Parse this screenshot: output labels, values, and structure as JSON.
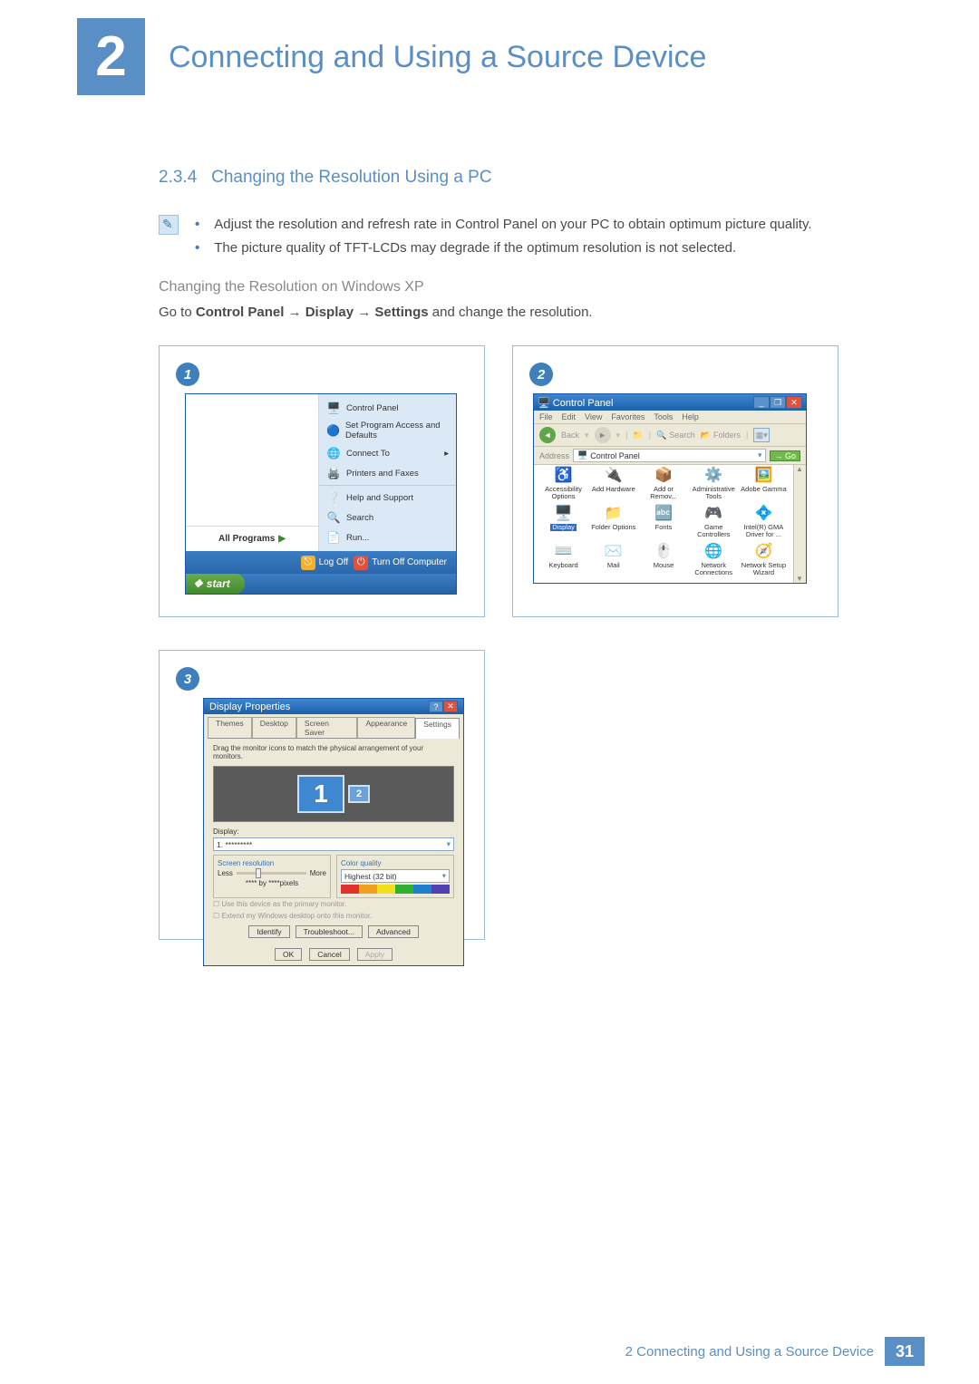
{
  "colors": {
    "accent": "#5a8fc6",
    "xp_blue_grad_top": "#3f86d0",
    "xp_blue_grad_bot": "#1c5fab",
    "xp_green_grad_top": "#6aaa4a",
    "xp_green_grad_bot": "#3f8a2d",
    "menu_bg": "#dbe8f6",
    "chrome_bg": "#ece9d8",
    "close_red": "#e0523e",
    "sel_blue": "#316ac5"
  },
  "header": {
    "chapter_number": "2",
    "chapter_title": "Connecting and Using a Source Device"
  },
  "section": {
    "number": "2.3.4",
    "title": "Changing the Resolution Using a PC"
  },
  "notes": {
    "bullet1": "Adjust the resolution and refresh rate in Control Panel on your PC to obtain optimum picture quality.",
    "bullet2": "The picture quality of TFT-LCDs may degrade if the optimum resolution is not selected."
  },
  "subheading": "Changing the Resolution on Windows XP",
  "instruction": {
    "prefix": "Go to ",
    "p1": "Control Panel",
    "arrow": " → ",
    "p2": "Display",
    "p3": "Settings",
    "suffix": " and change the resolution."
  },
  "shot1": {
    "num": "1",
    "right_items": [
      {
        "icon": "🖥️",
        "label": "Control Panel"
      },
      {
        "icon": "🔵",
        "label": "Set Program Access and Defaults"
      },
      {
        "icon": "🌐",
        "label": "Connect To"
      },
      {
        "icon": "🖨️",
        "label": "Printers and Faxes"
      },
      {
        "icon": "❔",
        "label": "Help and Support",
        "sep_before": true
      },
      {
        "icon": "🔍",
        "label": "Search"
      },
      {
        "icon": "📄",
        "label": "Run..."
      }
    ],
    "all_programs": "All Programs",
    "logoff": "Log Off",
    "turnoff": "Turn Off Computer",
    "start": "start"
  },
  "shot2": {
    "num": "2",
    "title": "Control Panel",
    "menus": [
      "File",
      "Edit",
      "View",
      "Favorites",
      "Tools",
      "Help"
    ],
    "toolbar": {
      "back": "Back",
      "search": "Search",
      "folders": "Folders"
    },
    "address_label": "Address",
    "address_value": "Control Panel",
    "go": "Go",
    "items": [
      {
        "icon": "♿",
        "label": "Accessibility Options"
      },
      {
        "icon": "🔌",
        "label": "Add Hardware"
      },
      {
        "icon": "📦",
        "label": "Add or Remov..."
      },
      {
        "icon": "⚙️",
        "label": "Administrative Tools"
      },
      {
        "icon": "🖼️",
        "label": "Adobe Gamma"
      },
      {
        "icon": "🖥️",
        "label": "Display",
        "selected": true
      },
      {
        "icon": "📁",
        "label": "Folder Options"
      },
      {
        "icon": "🔤",
        "label": "Fonts"
      },
      {
        "icon": "🎮",
        "label": "Game Controllers"
      },
      {
        "icon": "💠",
        "label": "Intel(R) GMA Driver for ..."
      },
      {
        "icon": "⌨️",
        "label": "Keyboard"
      },
      {
        "icon": "✉️",
        "label": "Mail"
      },
      {
        "icon": "🖱️",
        "label": "Mouse"
      },
      {
        "icon": "🌐",
        "label": "Network Connections"
      },
      {
        "icon": "🧭",
        "label": "Network Setup Wizard"
      }
    ]
  },
  "shot3": {
    "num": "3",
    "title": "Display Properties",
    "tabs": [
      "Themes",
      "Desktop",
      "Screen Saver",
      "Appearance",
      "Settings"
    ],
    "active_tab": "Settings",
    "note": "Drag the monitor icons to match the physical arrangement of your monitors.",
    "mon1": "1",
    "mon2": "2",
    "display_label": "Display:",
    "display_value": "1. *********",
    "res_group": "Screen resolution",
    "res_less": "Less",
    "res_more": "More",
    "res_value": "**** by ****pixels",
    "cq_group": "Color quality",
    "cq_value": "Highest (32 bit)",
    "cq_colors": [
      "#e03030",
      "#f0a020",
      "#f0e020",
      "#30b030",
      "#2080d0",
      "#5040b0"
    ],
    "chk1": "Use this device as the primary monitor.",
    "chk2": "Extend my Windows desktop onto this monitor.",
    "btn_identify": "Identify",
    "btn_troubleshoot": "Troubleshoot...",
    "btn_advanced": "Advanced",
    "btn_ok": "OK",
    "btn_cancel": "Cancel",
    "btn_apply": "Apply"
  },
  "footer": {
    "text": "2 Connecting and Using a Source Device",
    "page": "31"
  }
}
